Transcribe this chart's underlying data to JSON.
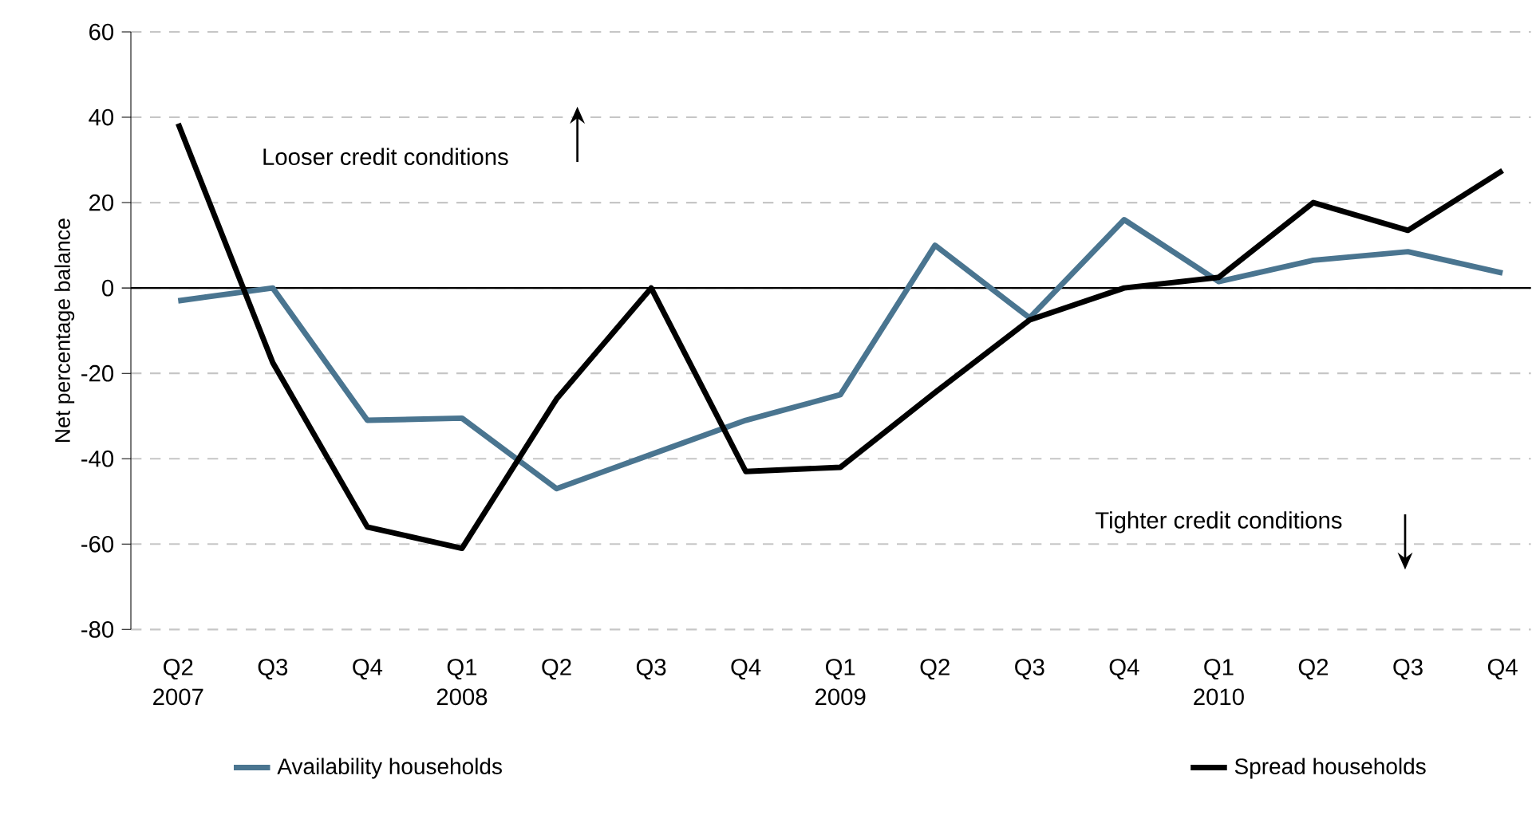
{
  "chart_data": {
    "type": "line",
    "ylabel": "Net percentage balance",
    "categories": [
      "Q2 2007",
      "Q3",
      "Q4",
      "Q1 2008",
      "Q2",
      "Q3",
      "Q4",
      "Q1 2009",
      "Q2",
      "Q3",
      "Q4",
      "Q1 2010",
      "Q2",
      "Q3",
      "Q4"
    ],
    "series": [
      {
        "name": "Availability households",
        "color": "#4a7590",
        "values": [
          -3,
          0,
          -31,
          -30.5,
          -47,
          -39,
          -31,
          -25,
          10,
          -7,
          16,
          1.5,
          6.5,
          8.5,
          3.5
        ]
      },
      {
        "name": "Spread households",
        "color": "#000000",
        "values": [
          38.5,
          -17.5,
          -56,
          -61,
          -26,
          0,
          -43,
          -42,
          -24.5,
          -7.5,
          0,
          2.5,
          20,
          13.5,
          27.5
        ]
      }
    ],
    "ylim": [
      -80,
      60
    ],
    "yticks": [
      -80,
      -60,
      -40,
      -20,
      0,
      20,
      40,
      60
    ],
    "grid": "y",
    "legend": "bottom",
    "marker": "none",
    "line_style": "solid",
    "ref_lines": [
      {
        "axis": "y",
        "value": 0,
        "color": "#000000"
      }
    ],
    "annotations": [
      "Looser credit conditions",
      "Tighter credit conditions"
    ]
  }
}
